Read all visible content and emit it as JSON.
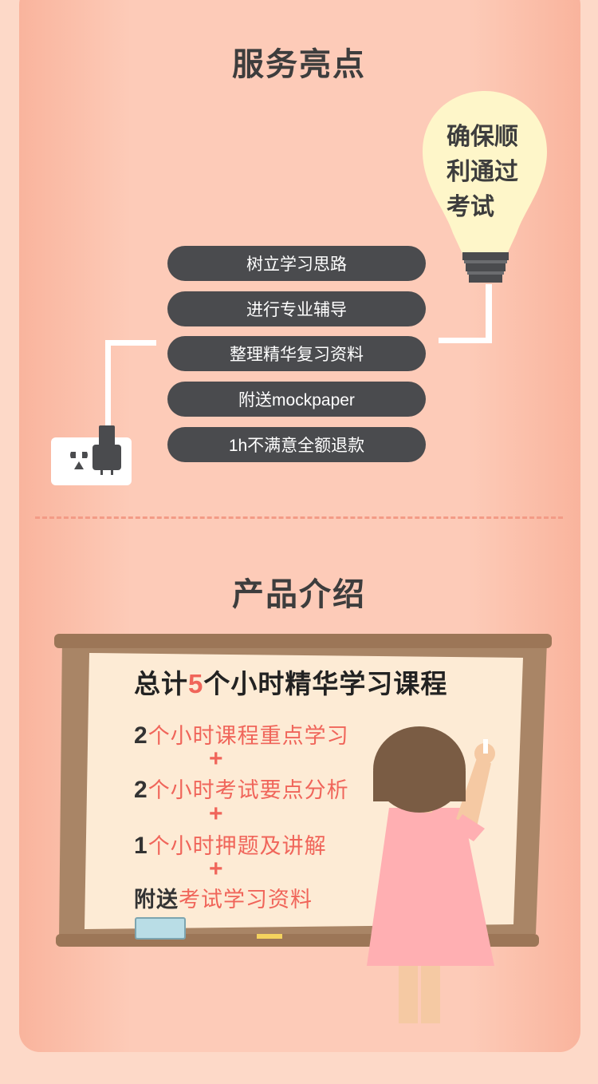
{
  "highlights": {
    "title": "服务亮点",
    "bulb_text": "确保顺利通过考试",
    "bulb_lines": [
      "确保顺",
      "利通过",
      "考试"
    ],
    "items": [
      "树立学习思路",
      "进行专业辅导",
      "整理精华复习资料",
      "附送mockpaper",
      "1h不满意全额退款"
    ]
  },
  "product": {
    "title": "产品介绍",
    "board_title_pre": "总计",
    "board_title_num": "5",
    "board_title_post": "个小时精华学习课程",
    "lines": [
      {
        "num": "2",
        "text": "个小时课程重点学习"
      },
      {
        "num": "2",
        "text": "个小时考试要点分析"
      },
      {
        "num": "1",
        "text": "个小时押题及讲解"
      },
      {
        "num": "附送",
        "text": "考试学习资料"
      }
    ],
    "plus": "+"
  },
  "colors": {
    "card_bg": "#fdcbb8",
    "pill_bg": "#4a4b4e",
    "accent": "#f0655a",
    "bulb": "#fef6c9"
  }
}
